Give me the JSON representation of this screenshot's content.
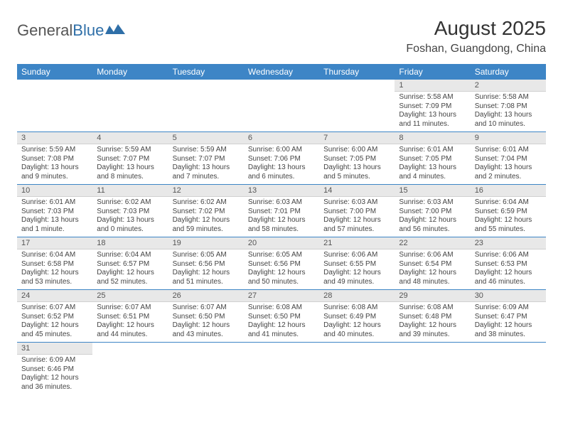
{
  "logo": {
    "text_a": "General",
    "text_b": "Blue",
    "accent_color": "#2f6fa8"
  },
  "title": "August 2025",
  "location": "Foshan, Guangdong, China",
  "header_bg": "#3d85c6",
  "daynum_bg": "#e8e8e8",
  "weekdays": [
    "Sunday",
    "Monday",
    "Tuesday",
    "Wednesday",
    "Thursday",
    "Friday",
    "Saturday"
  ],
  "weeks": [
    [
      {
        "n": "",
        "sr": "",
        "ss": "",
        "dl": ""
      },
      {
        "n": "",
        "sr": "",
        "ss": "",
        "dl": ""
      },
      {
        "n": "",
        "sr": "",
        "ss": "",
        "dl": ""
      },
      {
        "n": "",
        "sr": "",
        "ss": "",
        "dl": ""
      },
      {
        "n": "",
        "sr": "",
        "ss": "",
        "dl": ""
      },
      {
        "n": "1",
        "sr": "Sunrise: 5:58 AM",
        "ss": "Sunset: 7:09 PM",
        "dl": "Daylight: 13 hours and 11 minutes."
      },
      {
        "n": "2",
        "sr": "Sunrise: 5:58 AM",
        "ss": "Sunset: 7:08 PM",
        "dl": "Daylight: 13 hours and 10 minutes."
      }
    ],
    [
      {
        "n": "3",
        "sr": "Sunrise: 5:59 AM",
        "ss": "Sunset: 7:08 PM",
        "dl": "Daylight: 13 hours and 9 minutes."
      },
      {
        "n": "4",
        "sr": "Sunrise: 5:59 AM",
        "ss": "Sunset: 7:07 PM",
        "dl": "Daylight: 13 hours and 8 minutes."
      },
      {
        "n": "5",
        "sr": "Sunrise: 5:59 AM",
        "ss": "Sunset: 7:07 PM",
        "dl": "Daylight: 13 hours and 7 minutes."
      },
      {
        "n": "6",
        "sr": "Sunrise: 6:00 AM",
        "ss": "Sunset: 7:06 PM",
        "dl": "Daylight: 13 hours and 6 minutes."
      },
      {
        "n": "7",
        "sr": "Sunrise: 6:00 AM",
        "ss": "Sunset: 7:05 PM",
        "dl": "Daylight: 13 hours and 5 minutes."
      },
      {
        "n": "8",
        "sr": "Sunrise: 6:01 AM",
        "ss": "Sunset: 7:05 PM",
        "dl": "Daylight: 13 hours and 4 minutes."
      },
      {
        "n": "9",
        "sr": "Sunrise: 6:01 AM",
        "ss": "Sunset: 7:04 PM",
        "dl": "Daylight: 13 hours and 2 minutes."
      }
    ],
    [
      {
        "n": "10",
        "sr": "Sunrise: 6:01 AM",
        "ss": "Sunset: 7:03 PM",
        "dl": "Daylight: 13 hours and 1 minute."
      },
      {
        "n": "11",
        "sr": "Sunrise: 6:02 AM",
        "ss": "Sunset: 7:03 PM",
        "dl": "Daylight: 13 hours and 0 minutes."
      },
      {
        "n": "12",
        "sr": "Sunrise: 6:02 AM",
        "ss": "Sunset: 7:02 PM",
        "dl": "Daylight: 12 hours and 59 minutes."
      },
      {
        "n": "13",
        "sr": "Sunrise: 6:03 AM",
        "ss": "Sunset: 7:01 PM",
        "dl": "Daylight: 12 hours and 58 minutes."
      },
      {
        "n": "14",
        "sr": "Sunrise: 6:03 AM",
        "ss": "Sunset: 7:00 PM",
        "dl": "Daylight: 12 hours and 57 minutes."
      },
      {
        "n": "15",
        "sr": "Sunrise: 6:03 AM",
        "ss": "Sunset: 7:00 PM",
        "dl": "Daylight: 12 hours and 56 minutes."
      },
      {
        "n": "16",
        "sr": "Sunrise: 6:04 AM",
        "ss": "Sunset: 6:59 PM",
        "dl": "Daylight: 12 hours and 55 minutes."
      }
    ],
    [
      {
        "n": "17",
        "sr": "Sunrise: 6:04 AM",
        "ss": "Sunset: 6:58 PM",
        "dl": "Daylight: 12 hours and 53 minutes."
      },
      {
        "n": "18",
        "sr": "Sunrise: 6:04 AM",
        "ss": "Sunset: 6:57 PM",
        "dl": "Daylight: 12 hours and 52 minutes."
      },
      {
        "n": "19",
        "sr": "Sunrise: 6:05 AM",
        "ss": "Sunset: 6:56 PM",
        "dl": "Daylight: 12 hours and 51 minutes."
      },
      {
        "n": "20",
        "sr": "Sunrise: 6:05 AM",
        "ss": "Sunset: 6:56 PM",
        "dl": "Daylight: 12 hours and 50 minutes."
      },
      {
        "n": "21",
        "sr": "Sunrise: 6:06 AM",
        "ss": "Sunset: 6:55 PM",
        "dl": "Daylight: 12 hours and 49 minutes."
      },
      {
        "n": "22",
        "sr": "Sunrise: 6:06 AM",
        "ss": "Sunset: 6:54 PM",
        "dl": "Daylight: 12 hours and 48 minutes."
      },
      {
        "n": "23",
        "sr": "Sunrise: 6:06 AM",
        "ss": "Sunset: 6:53 PM",
        "dl": "Daylight: 12 hours and 46 minutes."
      }
    ],
    [
      {
        "n": "24",
        "sr": "Sunrise: 6:07 AM",
        "ss": "Sunset: 6:52 PM",
        "dl": "Daylight: 12 hours and 45 minutes."
      },
      {
        "n": "25",
        "sr": "Sunrise: 6:07 AM",
        "ss": "Sunset: 6:51 PM",
        "dl": "Daylight: 12 hours and 44 minutes."
      },
      {
        "n": "26",
        "sr": "Sunrise: 6:07 AM",
        "ss": "Sunset: 6:50 PM",
        "dl": "Daylight: 12 hours and 43 minutes."
      },
      {
        "n": "27",
        "sr": "Sunrise: 6:08 AM",
        "ss": "Sunset: 6:50 PM",
        "dl": "Daylight: 12 hours and 41 minutes."
      },
      {
        "n": "28",
        "sr": "Sunrise: 6:08 AM",
        "ss": "Sunset: 6:49 PM",
        "dl": "Daylight: 12 hours and 40 minutes."
      },
      {
        "n": "29",
        "sr": "Sunrise: 6:08 AM",
        "ss": "Sunset: 6:48 PM",
        "dl": "Daylight: 12 hours and 39 minutes."
      },
      {
        "n": "30",
        "sr": "Sunrise: 6:09 AM",
        "ss": "Sunset: 6:47 PM",
        "dl": "Daylight: 12 hours and 38 minutes."
      }
    ],
    [
      {
        "n": "31",
        "sr": "Sunrise: 6:09 AM",
        "ss": "Sunset: 6:46 PM",
        "dl": "Daylight: 12 hours and 36 minutes."
      },
      {
        "n": "",
        "sr": "",
        "ss": "",
        "dl": ""
      },
      {
        "n": "",
        "sr": "",
        "ss": "",
        "dl": ""
      },
      {
        "n": "",
        "sr": "",
        "ss": "",
        "dl": ""
      },
      {
        "n": "",
        "sr": "",
        "ss": "",
        "dl": ""
      },
      {
        "n": "",
        "sr": "",
        "ss": "",
        "dl": ""
      },
      {
        "n": "",
        "sr": "",
        "ss": "",
        "dl": ""
      }
    ]
  ]
}
